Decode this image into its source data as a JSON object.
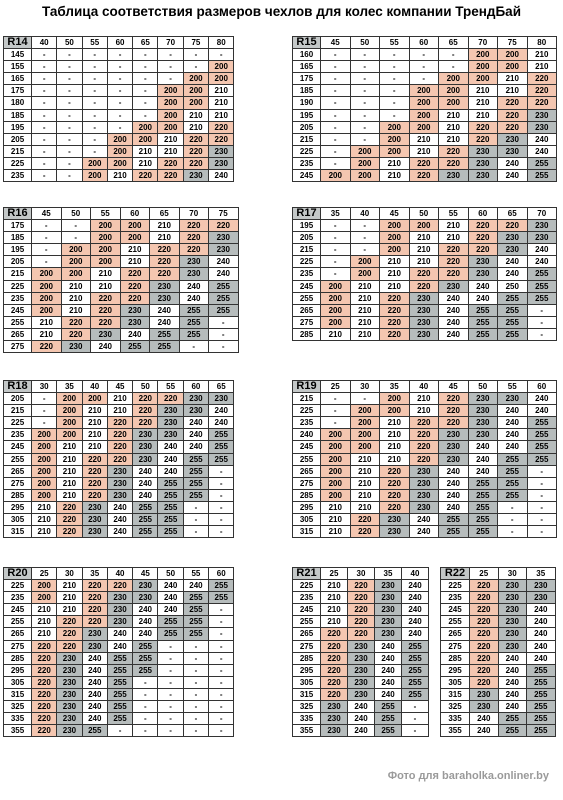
{
  "title": "Таблица соответствия размеров чехлов для колес компании ТрендБай",
  "watermark": "Фото для baraholka.onliner.by",
  "colors": {
    "pink": "#f4c6b0",
    "gray": "#b6bcbc",
    "header_gray": "#c4c8c8"
  },
  "tables": [
    {
      "radius": "R14",
      "columns": [
        "40",
        "50",
        "55",
        "60",
        "65",
        "70",
        "75",
        "80"
      ],
      "rows": [
        [
          "145",
          "-",
          "-",
          "-",
          "-",
          "-",
          "-",
          "-",
          "-"
        ],
        [
          "155",
          "-",
          "-",
          "-",
          "-",
          "-",
          "-",
          "-",
          "200"
        ],
        [
          "165",
          "-",
          "-",
          "-",
          "-",
          "-",
          "-",
          "200",
          "200"
        ],
        [
          "175",
          "-",
          "-",
          "-",
          "-",
          "-",
          "200",
          "200",
          "210"
        ],
        [
          "180",
          "-",
          "-",
          "-",
          "-",
          "-",
          "200",
          "200",
          "210"
        ],
        [
          "185",
          "-",
          "-",
          "-",
          "-",
          "-",
          "200",
          "210",
          "210"
        ],
        [
          "195",
          "-",
          "-",
          "-",
          "-",
          "200",
          "200",
          "210",
          "220"
        ],
        [
          "205",
          "-",
          "-",
          "-",
          "200",
          "200",
          "210",
          "220",
          "220"
        ],
        [
          "215",
          "-",
          "-",
          "-",
          "200",
          "210",
          "210",
          "220",
          "230"
        ],
        [
          "225",
          "-",
          "-",
          "200",
          "200",
          "210",
          "220",
          "220",
          "230"
        ],
        [
          "235",
          "-",
          "-",
          "200",
          "210",
          "220",
          "220",
          "230",
          "240"
        ]
      ]
    },
    {
      "radius": "R15",
      "columns": [
        "45",
        "50",
        "55",
        "60",
        "65",
        "70",
        "75",
        "80"
      ],
      "rows": [
        [
          "160",
          "-",
          "-",
          "-",
          "-",
          "-",
          "200",
          "200",
          "210"
        ],
        [
          "165",
          "-",
          "-",
          "-",
          "-",
          "-",
          "200",
          "200",
          "210"
        ],
        [
          "175",
          "-",
          "-",
          "-",
          "-",
          "200",
          "200",
          "210",
          "220"
        ],
        [
          "185",
          "-",
          "-",
          "-",
          "200",
          "200",
          "210",
          "210",
          "220"
        ],
        [
          "190",
          "-",
          "-",
          "-",
          "200",
          "200",
          "210",
          "220",
          "220"
        ],
        [
          "195",
          "-",
          "-",
          "-",
          "200",
          "210",
          "210",
          "220",
          "230"
        ],
        [
          "205",
          "-",
          "-",
          "200",
          "200",
          "210",
          "220",
          "220",
          "230"
        ],
        [
          "215",
          "-",
          "-",
          "200",
          "210",
          "210",
          "220",
          "230",
          "240"
        ],
        [
          "225",
          "-",
          "200",
          "200",
          "210",
          "220",
          "230",
          "230",
          "240"
        ],
        [
          "235",
          "-",
          "200",
          "210",
          "220",
          "220",
          "230",
          "240",
          "255"
        ],
        [
          "245",
          "200",
          "200",
          "210",
          "220",
          "230",
          "230",
          "240",
          "255"
        ]
      ]
    },
    {
      "radius": "R16",
      "columns": [
        "45",
        "50",
        "55",
        "60",
        "65",
        "70",
        "75"
      ],
      "rows": [
        [
          "175",
          "-",
          "-",
          "200",
          "200",
          "210",
          "220",
          "220"
        ],
        [
          "185",
          "-",
          "-",
          "200",
          "200",
          "210",
          "220",
          "230"
        ],
        [
          "195",
          "-",
          "200",
          "200",
          "210",
          "220",
          "220",
          "230"
        ],
        [
          "205",
          "-",
          "200",
          "200",
          "210",
          "220",
          "230",
          "240"
        ],
        [
          "215",
          "200",
          "200",
          "210",
          "220",
          "220",
          "230",
          "240"
        ],
        [
          "225",
          "200",
          "210",
          "210",
          "220",
          "230",
          "240",
          "255"
        ],
        [
          "235",
          "200",
          "210",
          "220",
          "220",
          "230",
          "240",
          "255"
        ],
        [
          "245",
          "200",
          "210",
          "220",
          "230",
          "240",
          "255",
          "255"
        ],
        [
          "255",
          "210",
          "220",
          "220",
          "230",
          "240",
          "255",
          "-"
        ],
        [
          "265",
          "210",
          "220",
          "230",
          "240",
          "255",
          "255",
          "-"
        ],
        [
          "275",
          "220",
          "230",
          "240",
          "255",
          "255",
          "-",
          "-"
        ]
      ]
    },
    {
      "radius": "R17",
      "columns": [
        "35",
        "40",
        "45",
        "50",
        "55",
        "60",
        "65",
        "70"
      ],
      "rows": [
        [
          "195",
          "-",
          "-",
          "200",
          "200",
          "210",
          "220",
          "220",
          "230"
        ],
        [
          "205",
          "-",
          "-",
          "200",
          "210",
          "210",
          "220",
          "230",
          "230"
        ],
        [
          "215",
          "-",
          "-",
          "200",
          "210",
          "220",
          "220",
          "230",
          "240"
        ],
        [
          "225",
          "-",
          "200",
          "210",
          "210",
          "220",
          "230",
          "240",
          "240"
        ],
        [
          "235",
          "-",
          "200",
          "210",
          "220",
          "220",
          "230",
          "240",
          "255"
        ],
        [
          "245",
          "200",
          "210",
          "210",
          "220",
          "230",
          "240",
          "250",
          "255"
        ],
        [
          "255",
          "200",
          "210",
          "220",
          "230",
          "240",
          "240",
          "255",
          "255"
        ],
        [
          "265",
          "200",
          "210",
          "220",
          "230",
          "240",
          "255",
          "255",
          "-"
        ],
        [
          "275",
          "200",
          "210",
          "220",
          "230",
          "240",
          "255",
          "255",
          "-"
        ],
        [
          "285",
          "210",
          "210",
          "220",
          "230",
          "240",
          "255",
          "255",
          "-"
        ]
      ]
    },
    {
      "radius": "R18",
      "columns": [
        "30",
        "35",
        "40",
        "45",
        "50",
        "55",
        "60",
        "65"
      ],
      "rows": [
        [
          "205",
          "-",
          "200",
          "200",
          "210",
          "220",
          "220",
          "230",
          "230"
        ],
        [
          "215",
          "-",
          "200",
          "210",
          "210",
          "220",
          "230",
          "230",
          "240"
        ],
        [
          "225",
          "-",
          "200",
          "210",
          "220",
          "220",
          "230",
          "240",
          "240"
        ],
        [
          "235",
          "200",
          "200",
          "210",
          "220",
          "230",
          "230",
          "240",
          "255"
        ],
        [
          "245",
          "200",
          "210",
          "210",
          "220",
          "230",
          "240",
          "240",
          "255"
        ],
        [
          "255",
          "200",
          "210",
          "220",
          "220",
          "230",
          "240",
          "255",
          "255"
        ],
        [
          "265",
          "200",
          "210",
          "220",
          "230",
          "240",
          "240",
          "255",
          "-"
        ],
        [
          "275",
          "200",
          "210",
          "220",
          "230",
          "240",
          "255",
          "255",
          "-"
        ],
        [
          "285",
          "200",
          "210",
          "220",
          "230",
          "240",
          "255",
          "255",
          "-"
        ],
        [
          "295",
          "210",
          "220",
          "230",
          "240",
          "255",
          "255",
          "-",
          "-"
        ],
        [
          "305",
          "210",
          "220",
          "230",
          "240",
          "255",
          "255",
          "-",
          "-"
        ],
        [
          "315",
          "210",
          "220",
          "230",
          "240",
          "255",
          "255",
          "-",
          "-"
        ]
      ]
    },
    {
      "radius": "R19",
      "columns": [
        "25",
        "30",
        "35",
        "40",
        "45",
        "50",
        "55",
        "60"
      ],
      "rows": [
        [
          "215",
          "-",
          "-",
          "200",
          "210",
          "220",
          "230",
          "230",
          "240"
        ],
        [
          "225",
          "-",
          "200",
          "200",
          "210",
          "220",
          "230",
          "240",
          "240"
        ],
        [
          "235",
          "-",
          "200",
          "210",
          "220",
          "220",
          "230",
          "240",
          "255"
        ],
        [
          "240",
          "200",
          "200",
          "210",
          "220",
          "230",
          "230",
          "240",
          "255"
        ],
        [
          "245",
          "200",
          "200",
          "210",
          "220",
          "230",
          "240",
          "240",
          "255"
        ],
        [
          "255",
          "200",
          "210",
          "210",
          "220",
          "230",
          "240",
          "255",
          "255"
        ],
        [
          "265",
          "200",
          "210",
          "220",
          "230",
          "240",
          "240",
          "255",
          "-"
        ],
        [
          "275",
          "200",
          "210",
          "220",
          "230",
          "240",
          "255",
          "255",
          "-"
        ],
        [
          "285",
          "200",
          "210",
          "220",
          "230",
          "240",
          "255",
          "255",
          "-"
        ],
        [
          "295",
          "210",
          "210",
          "220",
          "230",
          "240",
          "255",
          "-",
          "-"
        ],
        [
          "305",
          "210",
          "220",
          "230",
          "240",
          "255",
          "255",
          "-",
          "-"
        ],
        [
          "315",
          "210",
          "220",
          "230",
          "240",
          "255",
          "255",
          "-",
          "-"
        ]
      ]
    },
    {
      "radius": "R20",
      "columns": [
        "25",
        "30",
        "35",
        "40",
        "45",
        "50",
        "55",
        "60"
      ],
      "rows": [
        [
          "225",
          "200",
          "210",
          "220",
          "220",
          "230",
          "240",
          "240",
          "255"
        ],
        [
          "235",
          "200",
          "210",
          "220",
          "230",
          "230",
          "240",
          "255",
          "255"
        ],
        [
          "245",
          "210",
          "210",
          "220",
          "230",
          "240",
          "240",
          "255",
          "-"
        ],
        [
          "255",
          "210",
          "220",
          "220",
          "230",
          "240",
          "255",
          "255",
          "-"
        ],
        [
          "265",
          "210",
          "220",
          "230",
          "240",
          "240",
          "255",
          "255",
          "-"
        ],
        [
          "275",
          "220",
          "220",
          "230",
          "240",
          "255",
          "-",
          "-",
          "-"
        ],
        [
          "285",
          "220",
          "230",
          "240",
          "255",
          "255",
          "-",
          "-",
          "-"
        ],
        [
          "295",
          "220",
          "230",
          "240",
          "255",
          "255",
          "-",
          "-",
          "-"
        ],
        [
          "305",
          "220",
          "230",
          "240",
          "255",
          "-",
          "-",
          "-",
          "-"
        ],
        [
          "315",
          "220",
          "230",
          "240",
          "255",
          "-",
          "-",
          "-",
          "-"
        ],
        [
          "325",
          "220",
          "230",
          "240",
          "255",
          "-",
          "-",
          "-",
          "-"
        ],
        [
          "335",
          "220",
          "230",
          "240",
          "255",
          "-",
          "-",
          "-",
          "-"
        ],
        [
          "355",
          "220",
          "230",
          "255",
          "-",
          "-",
          "-",
          "-",
          "-"
        ]
      ]
    },
    {
      "radius": "R21",
      "columns": [
        "25",
        "30",
        "35",
        "40"
      ],
      "rows": [
        [
          "225",
          "210",
          "220",
          "230",
          "240"
        ],
        [
          "235",
          "210",
          "220",
          "230",
          "240"
        ],
        [
          "245",
          "210",
          "220",
          "230",
          "240"
        ],
        [
          "255",
          "210",
          "220",
          "230",
          "240"
        ],
        [
          "265",
          "220",
          "220",
          "230",
          "240"
        ],
        [
          "275",
          "220",
          "230",
          "240",
          "255"
        ],
        [
          "285",
          "220",
          "230",
          "240",
          "255"
        ],
        [
          "295",
          "220",
          "230",
          "240",
          "255"
        ],
        [
          "305",
          "220",
          "230",
          "240",
          "255"
        ],
        [
          "315",
          "220",
          "230",
          "240",
          "255"
        ],
        [
          "325",
          "230",
          "240",
          "255",
          "-"
        ],
        [
          "335",
          "230",
          "240",
          "255",
          "-"
        ],
        [
          "355",
          "230",
          "240",
          "255",
          "-"
        ]
      ]
    },
    {
      "radius": "R22",
      "columns": [
        "25",
        "30",
        "35"
      ],
      "rows": [
        [
          "225",
          "220",
          "230",
          "230"
        ],
        [
          "235",
          "220",
          "230",
          "230"
        ],
        [
          "245",
          "220",
          "230",
          "240"
        ],
        [
          "255",
          "220",
          "230",
          "240"
        ],
        [
          "265",
          "220",
          "230",
          "240"
        ],
        [
          "275",
          "220",
          "230",
          "240"
        ],
        [
          "285",
          "220",
          "240",
          "240"
        ],
        [
          "295",
          "220",
          "240",
          "255"
        ],
        [
          "305",
          "220",
          "240",
          "255"
        ],
        [
          "315",
          "230",
          "240",
          "255"
        ],
        [
          "325",
          "230",
          "240",
          "255"
        ],
        [
          "335",
          "240",
          "255",
          "255"
        ],
        [
          "355",
          "240",
          "255",
          "255"
        ]
      ]
    }
  ]
}
